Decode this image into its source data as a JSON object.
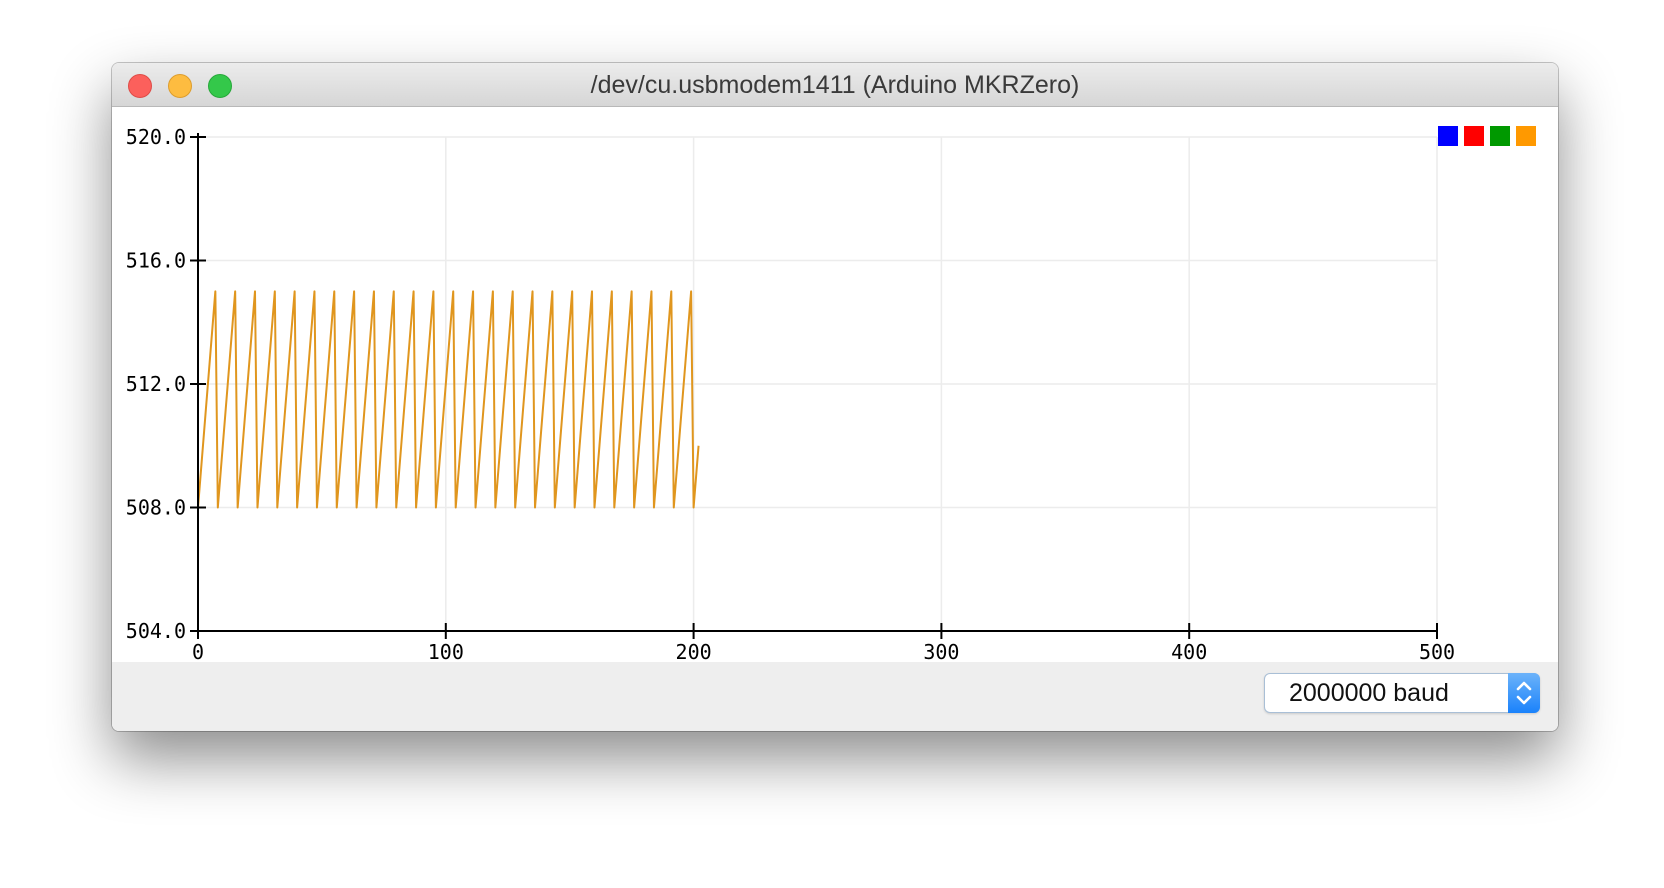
{
  "window": {
    "title": "/dev/cu.usbmodem1411 (Arduino MKRZero)"
  },
  "legend": {
    "swatches": [
      {
        "color": "#0000ff"
      },
      {
        "color": "#ff0000"
      },
      {
        "color": "#009900"
      },
      {
        "color": "#ff9900"
      }
    ]
  },
  "chart_data": {
    "type": "line",
    "ylim": [
      504.0,
      520.0
    ],
    "yticks": [
      "504.0",
      "508.0",
      "512.0",
      "516.0",
      "520.0"
    ],
    "xlim": [
      0,
      500
    ],
    "xticks": [
      "0",
      "100",
      "200",
      "300",
      "400",
      "500"
    ],
    "grid": true,
    "series": [
      {
        "color": "#e0961e",
        "pattern": [
          508,
          509,
          510,
          511,
          512,
          513,
          514,
          515
        ],
        "x_start": 0,
        "x_end": 202
      }
    ]
  },
  "footer": {
    "baud_value": "2000000 baud",
    "icons": {
      "stepper": "chevron-up-down-icon"
    }
  }
}
